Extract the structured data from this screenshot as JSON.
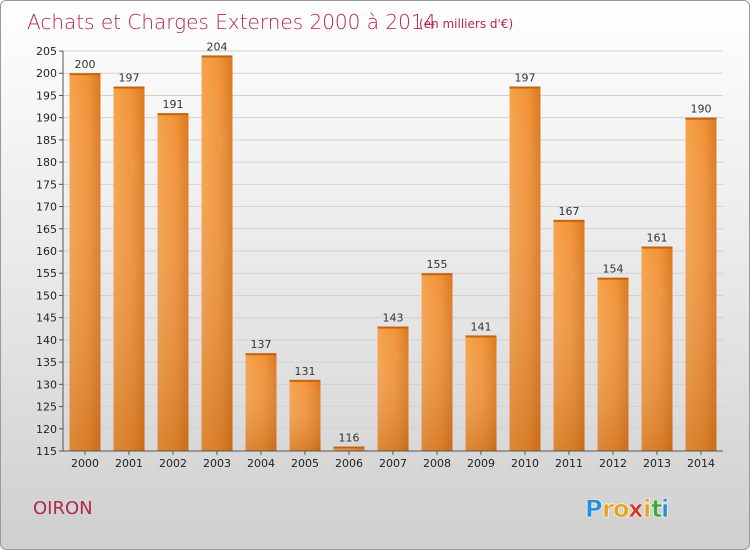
{
  "chart_data": {
    "type": "bar",
    "title": "Achats et Charges Externes 2000 à 2014",
    "unit_note": "(en milliers d'€)",
    "categories": [
      "2000",
      "2001",
      "2002",
      "2003",
      "2004",
      "2005",
      "2006",
      "2007",
      "2008",
      "2009",
      "2010",
      "2011",
      "2012",
      "2013",
      "2014"
    ],
    "values": [
      200,
      197,
      191,
      204,
      137,
      131,
      116,
      143,
      155,
      141,
      197,
      167,
      154,
      161,
      190
    ],
    "ylim": [
      115,
      205
    ],
    "ytick_step": 5,
    "xlabel": "",
    "ylabel": "",
    "grid": true,
    "bar_color": "#f0912f",
    "bar_highlight": "#f7a95a",
    "bar_shadow": "#c86a12"
  },
  "commune_label": "OIRON",
  "logo": {
    "letters": [
      "P",
      "r",
      "o",
      "x",
      "i",
      "t",
      "i"
    ],
    "colors": [
      "#2a8fd6",
      "#e8a21c",
      "#e8a21c",
      "#d9372b",
      "#e8a21c",
      "#3fa83a",
      "#2a8fd6"
    ]
  }
}
